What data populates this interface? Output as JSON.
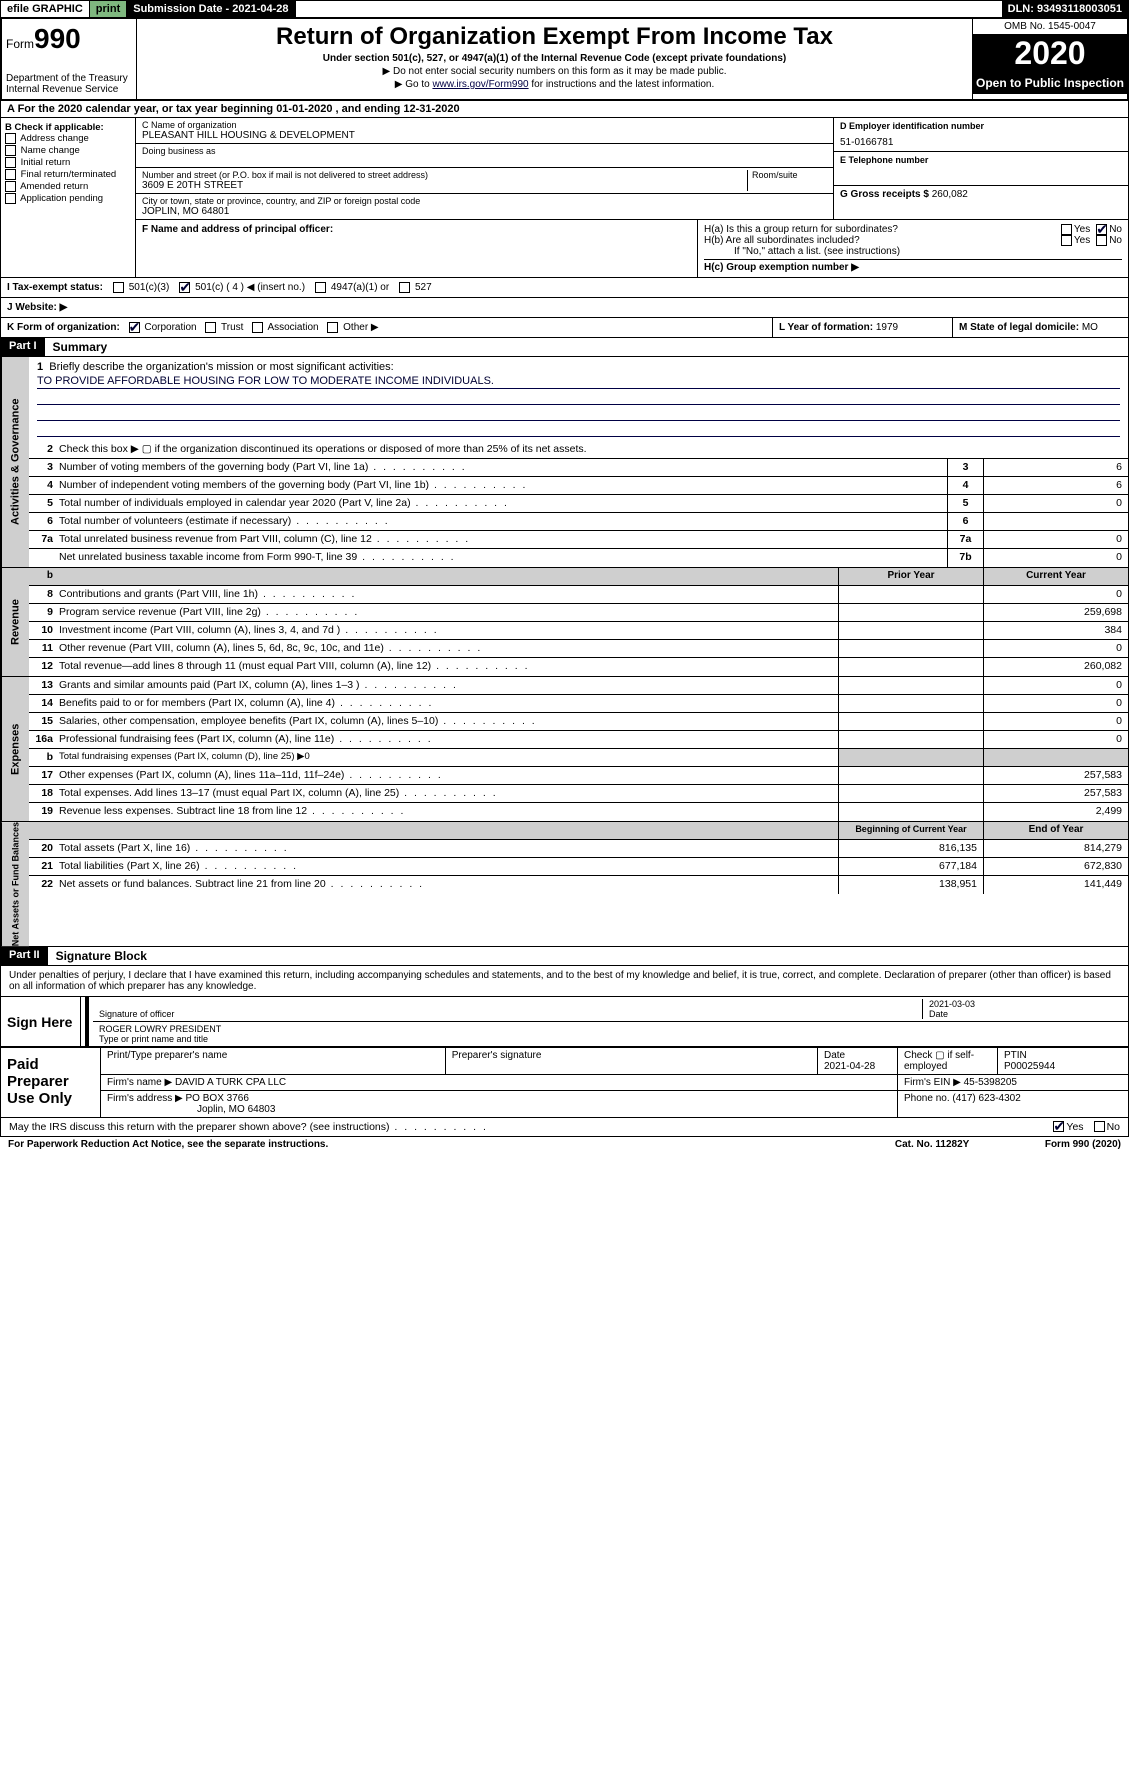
{
  "topbar": {
    "efile": "efile GRAPHIC",
    "print": "print",
    "submission": "Submission Date - 2021-04-28",
    "dln": "DLN: 93493118003051"
  },
  "header": {
    "form_prefix": "Form",
    "form_no": "990",
    "dept": "Department of the Treasury",
    "irs": "Internal Revenue Service",
    "title": "Return of Organization Exempt From Income Tax",
    "subtitle": "Under section 501(c), 527, or 4947(a)(1) of the Internal Revenue Code (except private foundations)",
    "note1": "▶ Do not enter social security numbers on this form as it may be made public.",
    "note2_pre": "▶ Go to ",
    "note2_link": "www.irs.gov/Form990",
    "note2_post": " for instructions and the latest information.",
    "omb": "OMB No. 1545-0047",
    "year": "2020",
    "open": "Open to Public Inspection"
  },
  "period": "A For the 2020 calendar year, or tax year beginning 01-01-2020   , and ending 12-31-2020",
  "sectionB": {
    "hdr": "B Check if applicable:",
    "items": [
      "Address change",
      "Name change",
      "Initial return",
      "Final return/terminated",
      "Amended return",
      "Application pending"
    ]
  },
  "sectionC": {
    "name_lbl": "C Name of organization",
    "name": "PLEASANT HILL HOUSING & DEVELOPMENT",
    "dba_lbl": "Doing business as",
    "addr_lbl": "Number and street (or P.O. box if mail is not delivered to street address)",
    "room_lbl": "Room/suite",
    "addr": "3609 E 20TH STREET",
    "city_lbl": "City or town, state or province, country, and ZIP or foreign postal code",
    "city": "JOPLIN, MO  64801"
  },
  "sectionD": {
    "lbl": "D Employer identification number",
    "val": "51-0166781"
  },
  "sectionE": {
    "lbl": "E Telephone number",
    "val": ""
  },
  "sectionG": {
    "lbl": "G Gross receipts $",
    "val": "260,082"
  },
  "sectionF": {
    "lbl": "F  Name and address of principal officer:"
  },
  "sectionH": {
    "a": "H(a)  Is this a group return for subordinates?",
    "b": "H(b)  Are all subordinates included?",
    "b_note": "If \"No,\" attach a list. (see instructions)",
    "c": "H(c)  Group exemption number ▶",
    "yes": "Yes",
    "no": "No"
  },
  "sectionI": {
    "lbl": "I   Tax-exempt status:",
    "opts": [
      "501(c)(3)",
      "501(c) ( 4 ) ◀ (insert no.)",
      "4947(a)(1) or",
      "527"
    ]
  },
  "sectionJ": {
    "lbl": "J   Website: ▶"
  },
  "sectionK": {
    "lbl": "K Form of organization:",
    "opts": [
      "Corporation",
      "Trust",
      "Association",
      "Other ▶"
    ]
  },
  "sectionL": {
    "lbl": "L Year of formation:",
    "val": "1979"
  },
  "sectionM": {
    "lbl": "M State of legal domicile:",
    "val": "MO"
  },
  "part1": {
    "hdr": "Part I",
    "title": "Summary"
  },
  "mission": {
    "num": "1",
    "lbl": "Briefly describe the organization's mission or most significant activities:",
    "text": "TO PROVIDE AFFORDABLE HOUSING FOR LOW TO MODERATE INCOME INDIVIDUALS."
  },
  "governance": {
    "side": "Activities & Governance",
    "line2": "Check this box ▶ ▢  if the organization discontinued its operations or disposed of more than 25% of its net assets.",
    "lines": [
      {
        "n": "3",
        "d": "Number of voting members of the governing body (Part VI, line 1a)",
        "b": "3",
        "v": "6"
      },
      {
        "n": "4",
        "d": "Number of independent voting members of the governing body (Part VI, line 1b)",
        "b": "4",
        "v": "6"
      },
      {
        "n": "5",
        "d": "Total number of individuals employed in calendar year 2020 (Part V, line 2a)",
        "b": "5",
        "v": "0"
      },
      {
        "n": "6",
        "d": "Total number of volunteers (estimate if necessary)",
        "b": "6",
        "v": ""
      },
      {
        "n": "7a",
        "d": "Total unrelated business revenue from Part VIII, column (C), line 12",
        "b": "7a",
        "v": "0"
      },
      {
        "n": "",
        "d": "Net unrelated business taxable income from Form 990-T, line 39",
        "b": "7b",
        "v": "0"
      }
    ]
  },
  "revHdr": {
    "b_blank": "b",
    "prior": "Prior Year",
    "current": "Current Year"
  },
  "revenue": {
    "side": "Revenue",
    "lines": [
      {
        "n": "8",
        "d": "Contributions and grants (Part VIII, line 1h)",
        "p": "",
        "c": "0"
      },
      {
        "n": "9",
        "d": "Program service revenue (Part VIII, line 2g)",
        "p": "",
        "c": "259,698"
      },
      {
        "n": "10",
        "d": "Investment income (Part VIII, column (A), lines 3, 4, and 7d )",
        "p": "",
        "c": "384"
      },
      {
        "n": "11",
        "d": "Other revenue (Part VIII, column (A), lines 5, 6d, 8c, 9c, 10c, and 11e)",
        "p": "",
        "c": "0"
      },
      {
        "n": "12",
        "d": "Total revenue—add lines 8 through 11 (must equal Part VIII, column (A), line 12)",
        "p": "",
        "c": "260,082"
      }
    ]
  },
  "expenses": {
    "side": "Expenses",
    "lines": [
      {
        "n": "13",
        "d": "Grants and similar amounts paid (Part IX, column (A), lines 1–3 )",
        "p": "",
        "c": "0"
      },
      {
        "n": "14",
        "d": "Benefits paid to or for members (Part IX, column (A), line 4)",
        "p": "",
        "c": "0"
      },
      {
        "n": "15",
        "d": "Salaries, other compensation, employee benefits (Part IX, column (A), lines 5–10)",
        "p": "",
        "c": "0"
      },
      {
        "n": "16a",
        "d": "Professional fundraising fees (Part IX, column (A), line 11e)",
        "p": "",
        "c": "0"
      },
      {
        "n": "b",
        "d": "Total fundraising expenses (Part IX, column (D), line 25) ▶0",
        "p": null,
        "c": null
      },
      {
        "n": "17",
        "d": "Other expenses (Part IX, column (A), lines 11a–11d, 11f–24e)",
        "p": "",
        "c": "257,583"
      },
      {
        "n": "18",
        "d": "Total expenses. Add lines 13–17 (must equal Part IX, column (A), line 25)",
        "p": "",
        "c": "257,583"
      },
      {
        "n": "19",
        "d": "Revenue less expenses. Subtract line 18 from line 12",
        "p": "",
        "c": "2,499"
      }
    ]
  },
  "netHdr": {
    "prior": "Beginning of Current Year",
    "current": "End of Year"
  },
  "netassets": {
    "side": "Net Assets or Fund Balances",
    "lines": [
      {
        "n": "20",
        "d": "Total assets (Part X, line 16)",
        "p": "816,135",
        "c": "814,279"
      },
      {
        "n": "21",
        "d": "Total liabilities (Part X, line 26)",
        "p": "677,184",
        "c": "672,830"
      },
      {
        "n": "22",
        "d": "Net assets or fund balances. Subtract line 21 from line 20",
        "p": "138,951",
        "c": "141,449"
      }
    ]
  },
  "part2": {
    "hdr": "Part II",
    "title": "Signature Block"
  },
  "sig": {
    "intro": "Under penalties of perjury, I declare that I have examined this return, including accompanying schedules and statements, and to the best of my knowledge and belief, it is true, correct, and complete. Declaration of preparer (other than officer) is based on all information of which preparer has any knowledge.",
    "sign_here": "Sign Here",
    "sig_lbl": "Signature of officer",
    "date": "2021-03-03",
    "date_lbl": "Date",
    "name": "ROGER LOWRY PRESIDENT",
    "name_lbl": "Type or print name and title"
  },
  "paid": {
    "hdr": "Paid Preparer Use Only",
    "col_prep": "Print/Type preparer's name",
    "col_sig": "Preparer's signature",
    "col_date": "Date",
    "date_val": "2021-04-28",
    "col_check": "Check ▢ if self-employed",
    "col_ptin": "PTIN",
    "ptin_val": "P00025944",
    "firm_name_lbl": "Firm's name    ▶",
    "firm_name": "DAVID A TURK CPA LLC",
    "firm_ein_lbl": "Firm's EIN ▶",
    "firm_ein": "45-5398205",
    "firm_addr_lbl": "Firm's address ▶",
    "firm_addr1": "PO BOX 3766",
    "firm_addr2": "Joplin, MO  64803",
    "phone_lbl": "Phone no.",
    "phone": "(417) 623-4302"
  },
  "discuss": {
    "q": "May the IRS discuss this return with the preparer shown above? (see instructions)",
    "yes": "Yes",
    "no": "No"
  },
  "footer": {
    "left": "For Paperwork Reduction Act Notice, see the separate instructions.",
    "mid": "Cat. No. 11282Y",
    "right": "Form 990 (2020)"
  }
}
